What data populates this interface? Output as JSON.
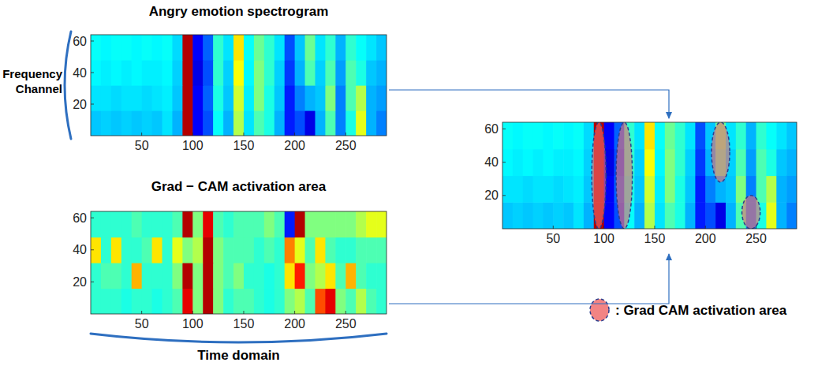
{
  "chart_data": [
    {
      "type": "heatmap",
      "title": "Angry emotion spectrogram",
      "y_label": "Frequency Channel",
      "xlim": [
        0,
        290
      ],
      "ylim": [
        0,
        64
      ],
      "xticks": [
        50,
        100,
        150,
        200,
        250
      ],
      "yticks": [
        20,
        40,
        60
      ],
      "zlim": [
        0,
        1
      ],
      "x_bins": [
        0,
        10,
        20,
        30,
        40,
        50,
        60,
        70,
        80,
        90,
        100,
        110,
        120,
        130,
        140,
        150,
        160,
        170,
        180,
        190,
        200,
        210,
        220,
        230,
        240,
        250,
        260,
        270,
        280,
        290
      ],
      "y_bins": [
        0,
        16,
        32,
        48,
        64
      ],
      "cells": [
        [
          0.32,
          0.33,
          0.32,
          0.33,
          0.32,
          0.33,
          0.32,
          0.35,
          0.3,
          0.95,
          0.12,
          0.2,
          0.38,
          0.3,
          0.55,
          0.35,
          0.45,
          0.4,
          0.3,
          0.15,
          0.2,
          0.1,
          0.3,
          0.45,
          0.25,
          0.4,
          0.6,
          0.3,
          0.25
        ],
        [
          0.35,
          0.35,
          0.34,
          0.35,
          0.35,
          0.34,
          0.35,
          0.36,
          0.32,
          0.95,
          0.12,
          0.22,
          0.4,
          0.32,
          0.58,
          0.36,
          0.5,
          0.4,
          0.32,
          0.15,
          0.25,
          0.3,
          0.32,
          0.5,
          0.25,
          0.45,
          0.55,
          0.3,
          0.28
        ],
        [
          0.37,
          0.36,
          0.37,
          0.36,
          0.37,
          0.36,
          0.36,
          0.37,
          0.33,
          0.95,
          0.1,
          0.2,
          0.42,
          0.33,
          0.62,
          0.37,
          0.5,
          0.42,
          0.33,
          0.18,
          0.3,
          0.45,
          0.33,
          0.45,
          0.28,
          0.45,
          0.4,
          0.32,
          0.3
        ],
        [
          0.38,
          0.37,
          0.38,
          0.38,
          0.37,
          0.38,
          0.37,
          0.38,
          0.34,
          0.95,
          0.12,
          0.22,
          0.42,
          0.35,
          0.65,
          0.38,
          0.48,
          0.42,
          0.35,
          0.2,
          0.32,
          0.48,
          0.35,
          0.42,
          0.3,
          0.42,
          0.38,
          0.35,
          0.32
        ]
      ]
    },
    {
      "type": "heatmap",
      "title": "Grad − CAM activation area",
      "x_label": "Time domain",
      "xlim": [
        0,
        290
      ],
      "ylim": [
        0,
        64
      ],
      "xticks": [
        50,
        100,
        150,
        200,
        250
      ],
      "yticks": [
        20,
        40,
        60
      ],
      "zlim": [
        0,
        1
      ],
      "x_bins": [
        0,
        10,
        20,
        30,
        40,
        50,
        60,
        70,
        80,
        90,
        100,
        110,
        120,
        130,
        140,
        150,
        160,
        170,
        180,
        190,
        200,
        210,
        220,
        230,
        240,
        250,
        260,
        270,
        280,
        290
      ],
      "y_bins": [
        0,
        16,
        32,
        48,
        64
      ],
      "cells": [
        [
          0.42,
          0.42,
          0.42,
          0.4,
          0.42,
          0.42,
          0.4,
          0.42,
          0.45,
          0.9,
          0.5,
          0.95,
          0.5,
          0.42,
          0.45,
          0.45,
          0.42,
          0.4,
          0.42,
          0.5,
          0.55,
          0.45,
          0.8,
          0.9,
          0.5,
          0.45,
          0.55,
          0.45,
          0.42
        ],
        [
          0.42,
          0.45,
          0.45,
          0.42,
          0.7,
          0.42,
          0.42,
          0.42,
          0.5,
          0.95,
          0.5,
          0.95,
          0.5,
          0.45,
          0.5,
          0.42,
          0.42,
          0.4,
          0.42,
          0.65,
          0.85,
          0.5,
          0.55,
          0.65,
          0.45,
          0.7,
          0.45,
          0.42,
          0.42
        ],
        [
          0.65,
          0.42,
          0.65,
          0.42,
          0.42,
          0.45,
          0.65,
          0.42,
          0.6,
          0.5,
          0.55,
          0.95,
          0.5,
          0.45,
          0.45,
          0.45,
          0.42,
          0.45,
          0.42,
          0.75,
          0.6,
          0.45,
          0.65,
          0.45,
          0.42,
          0.42,
          0.45,
          0.45,
          0.45
        ],
        [
          0.42,
          0.42,
          0.42,
          0.42,
          0.45,
          0.42,
          0.42,
          0.42,
          0.45,
          0.95,
          0.5,
          0.9,
          0.45,
          0.42,
          0.45,
          0.45,
          0.45,
          0.5,
          0.45,
          0.15,
          0.95,
          0.5,
          0.5,
          0.5,
          0.5,
          0.5,
          0.55,
          0.6,
          0.6
        ]
      ]
    },
    {
      "type": "heatmap",
      "xlim": [
        0,
        290
      ],
      "ylim": [
        0,
        64
      ],
      "xticks": [
        50,
        100,
        150,
        200,
        250
      ],
      "yticks": [
        20,
        40,
        60
      ],
      "zlim": [
        0,
        1
      ],
      "x_bins": [
        0,
        10,
        20,
        30,
        40,
        50,
        60,
        70,
        80,
        90,
        100,
        110,
        120,
        130,
        140,
        150,
        160,
        170,
        180,
        190,
        200,
        210,
        220,
        230,
        240,
        250,
        260,
        270,
        280,
        290
      ],
      "y_bins": [
        0,
        16,
        32,
        48,
        64
      ],
      "cells": [
        [
          0.32,
          0.33,
          0.32,
          0.33,
          0.32,
          0.33,
          0.32,
          0.35,
          0.3,
          0.95,
          0.12,
          0.2,
          0.38,
          0.3,
          0.55,
          0.35,
          0.45,
          0.4,
          0.3,
          0.15,
          0.2,
          0.1,
          0.3,
          0.45,
          0.25,
          0.4,
          0.6,
          0.3,
          0.25
        ],
        [
          0.35,
          0.35,
          0.34,
          0.35,
          0.35,
          0.34,
          0.35,
          0.36,
          0.32,
          0.95,
          0.12,
          0.22,
          0.4,
          0.32,
          0.58,
          0.36,
          0.5,
          0.4,
          0.32,
          0.15,
          0.25,
          0.3,
          0.32,
          0.5,
          0.25,
          0.45,
          0.55,
          0.3,
          0.28
        ],
        [
          0.37,
          0.36,
          0.37,
          0.36,
          0.37,
          0.36,
          0.36,
          0.37,
          0.33,
          0.95,
          0.1,
          0.2,
          0.42,
          0.33,
          0.62,
          0.37,
          0.5,
          0.42,
          0.33,
          0.18,
          0.3,
          0.45,
          0.33,
          0.45,
          0.28,
          0.45,
          0.4,
          0.32,
          0.3
        ],
        [
          0.38,
          0.37,
          0.38,
          0.38,
          0.37,
          0.38,
          0.37,
          0.38,
          0.34,
          0.95,
          0.12,
          0.22,
          0.42,
          0.35,
          0.65,
          0.38,
          0.48,
          0.42,
          0.35,
          0.2,
          0.32,
          0.48,
          0.35,
          0.42,
          0.3,
          0.42,
          0.38,
          0.35,
          0.32
        ]
      ],
      "areas": [
        {
          "x": [
            88,
            102
          ],
          "y": [
            0,
            64
          ]
        },
        {
          "x": [
            112,
            128
          ],
          "y": [
            0,
            64
          ]
        },
        {
          "x": [
            206,
            224
          ],
          "y": [
            28,
            64
          ]
        },
        {
          "x": [
            236,
            254
          ],
          "y": [
            0,
            20
          ]
        }
      ],
      "area_label": ": Grad CAM activation area"
    }
  ]
}
